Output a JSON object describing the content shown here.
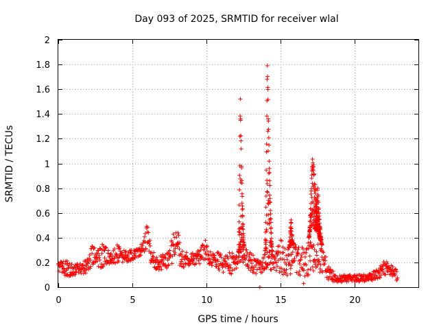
{
  "chart_data": {
    "type": "scatter",
    "title": "Day 093 of 2025, SRMTID for receiver wlal",
    "xlabel": "GPS time / hours",
    "ylabel": "SRMTID / TECUs",
    "xlim": [
      0,
      24.3
    ],
    "ylim": [
      0,
      2
    ],
    "xticks": [
      0,
      5,
      10,
      15,
      20
    ],
    "xtick_labels": [
      "0",
      "5",
      "10",
      "15",
      "20"
    ],
    "yticks": [
      0,
      0.2,
      0.4,
      0.6,
      0.8,
      1,
      1.2,
      1.4,
      1.6,
      1.8,
      2
    ],
    "ytick_labels": [
      "0",
      "0.2",
      "0.4",
      "0.6",
      "0.8",
      "1",
      "1.2",
      "1.4",
      "1.6",
      "1.8",
      "2"
    ],
    "grid": true,
    "marker": "+",
    "marker_color": "#ff0000",
    "series": [
      {
        "name": "SRMTID",
        "envelope": {
          "x": [
            0,
            0.5,
            1.0,
            1.5,
            2.0,
            2.3,
            2.6,
            3.0,
            3.5,
            4.0,
            4.5,
            5.0,
            5.5,
            5.8,
            6.0,
            6.3,
            6.8,
            7.3,
            7.8,
            8.0,
            8.3,
            9.0,
            9.5,
            9.9,
            10.3,
            10.8,
            11.2,
            11.7,
            12.0,
            12.4,
            12.8,
            13.3,
            13.7,
            14.1,
            14.5,
            15.0,
            15.4,
            15.8,
            16.2,
            16.7,
            17.1,
            17.5,
            17.9,
            18.3,
            19.0,
            19.5,
            20.0,
            20.5,
            21.0,
            21.5,
            22.0,
            22.5,
            22.9
          ],
          "low": [
            0.12,
            0.08,
            0.1,
            0.1,
            0.12,
            0.18,
            0.15,
            0.16,
            0.18,
            0.2,
            0.2,
            0.22,
            0.25,
            0.28,
            0.22,
            0.18,
            0.1,
            0.15,
            0.2,
            0.22,
            0.15,
            0.18,
            0.18,
            0.2,
            0.18,
            0.12,
            0.12,
            0.1,
            0.15,
            0.2,
            0.15,
            0.1,
            0.08,
            0.1,
            0.15,
            0.1,
            0.08,
            0.12,
            0.1,
            0.08,
            0.1,
            0.12,
            0.1,
            0.05,
            0.04,
            0.04,
            0.05,
            0.04,
            0.05,
            0.06,
            0.1,
            0.08,
            0.04
          ],
          "high": [
            0.2,
            0.22,
            0.18,
            0.2,
            0.25,
            0.35,
            0.3,
            0.35,
            0.28,
            0.35,
            0.3,
            0.3,
            0.32,
            0.45,
            0.55,
            0.3,
            0.25,
            0.28,
            0.48,
            0.5,
            0.3,
            0.28,
            0.3,
            0.38,
            0.28,
            0.3,
            0.25,
            0.3,
            0.25,
            0.35,
            0.3,
            0.25,
            0.2,
            0.35,
            0.28,
            0.4,
            0.3,
            0.35,
            0.35,
            0.3,
            0.5,
            0.45,
            0.3,
            0.15,
            0.1,
            0.1,
            0.1,
            0.1,
            0.12,
            0.14,
            0.22,
            0.18,
            0.15
          ]
        },
        "spikes": [
          {
            "x_start": 12.15,
            "x_end": 12.55,
            "peak_x": 12.28,
            "peak": 1.55
          },
          {
            "x_start": 13.95,
            "x_end": 14.45,
            "peak_x": 14.1,
            "peak": 1.9
          },
          {
            "x_start": 15.55,
            "x_end": 15.85,
            "peak_x": 15.7,
            "peak": 0.58
          },
          {
            "x_start": 16.9,
            "x_end": 17.7,
            "peak_x": 17.15,
            "peak": 1.1
          },
          {
            "x_start": 17.3,
            "x_end": 17.8,
            "peak_x": 17.5,
            "peak": 0.82
          }
        ],
        "outliers": [
          {
            "x": 13.6,
            "y": 0.0
          },
          {
            "x": 16.55,
            "y": 0.03
          }
        ]
      }
    ]
  }
}
